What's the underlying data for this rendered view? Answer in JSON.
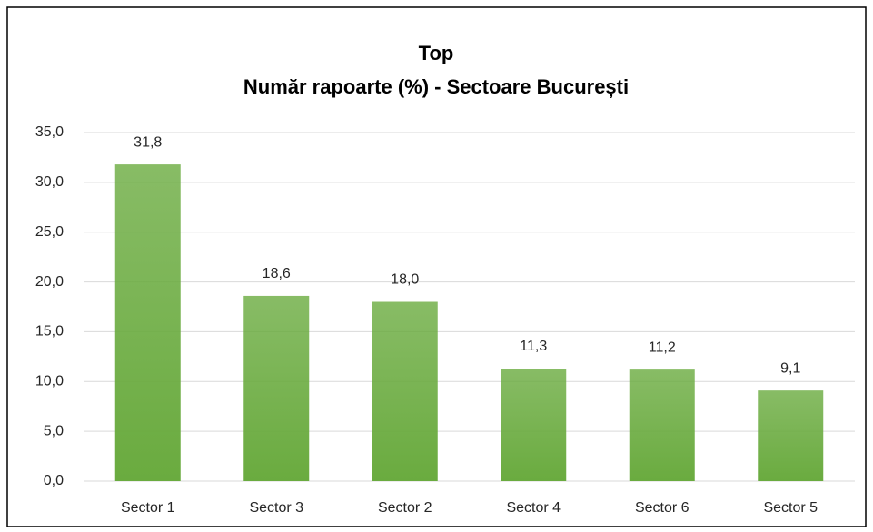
{
  "chart_data": {
    "type": "bar",
    "title": "Top",
    "subtitle": "Număr rapoarte (%) - Sectoare București",
    "categories": [
      "Sector 1",
      "Sector 3",
      "Sector 2",
      "Sector 4",
      "Sector 6",
      "Sector 5"
    ],
    "values": [
      31.8,
      18.6,
      18.0,
      11.3,
      11.2,
      9.1
    ],
    "value_labels": [
      "31,8",
      "18,6",
      "18,0",
      "11,3",
      "11,2",
      "9,1"
    ],
    "color": "#6aab3f",
    "ylim": [
      0,
      35
    ],
    "yticks": [
      {
        "value": 0,
        "label": "0,0"
      },
      {
        "value": 5,
        "label": "5,0"
      },
      {
        "value": 10,
        "label": "10,0"
      },
      {
        "value": 15,
        "label": "15,0"
      },
      {
        "value": 20,
        "label": "20,0"
      },
      {
        "value": 25,
        "label": "25,0"
      },
      {
        "value": 30,
        "label": "30,0"
      },
      {
        "value": 35,
        "label": "35,0"
      }
    ],
    "grid": true
  }
}
